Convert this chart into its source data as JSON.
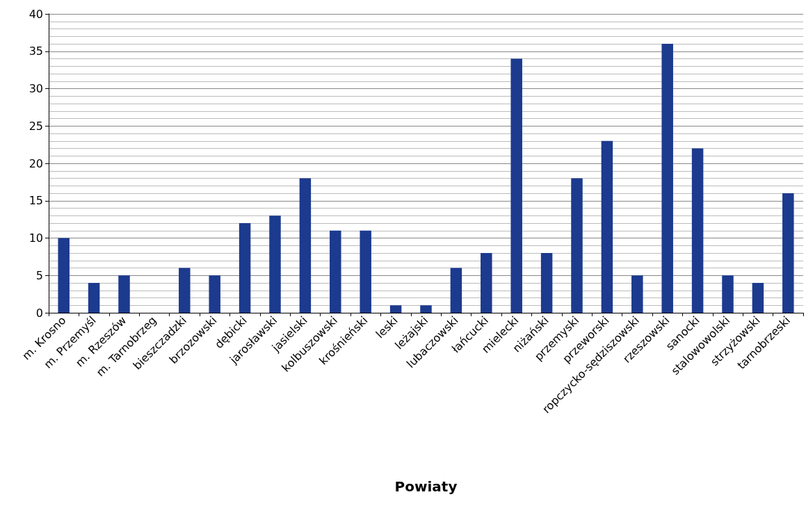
{
  "chart_data": {
    "type": "bar",
    "xlabel": "Powiaty",
    "categories": [
      "m. Krosno",
      "m. Przemyśl",
      "m. Rzeszów",
      "m. Tarnobrzeg",
      "bieszczadzki",
      "brzozowski",
      "dębicki",
      "jarosławski",
      "jasielski",
      "kolbuszowski",
      "krośnieński",
      "leski",
      "leżajski",
      "lubaczowski",
      "łańcucki",
      "mielecki",
      "niżański",
      "przemyski",
      "przeworski",
      "ropczycko-sędziszowski",
      "rzeszowski",
      "sanocki",
      "stalowowolski",
      "strzyżowski",
      "tarnobrzeski"
    ],
    "values": [
      10,
      4,
      5,
      0,
      6,
      5,
      12,
      13,
      18,
      11,
      11,
      1,
      1,
      6,
      8,
      34,
      8,
      18,
      23,
      5,
      36,
      22,
      5,
      4,
      16
    ],
    "color": "#1c3a8e",
    "ylim": [
      0,
      40
    ],
    "yticks": [
      0,
      5,
      10,
      15,
      20,
      25,
      30,
      35,
      40
    ],
    "grid": "y"
  }
}
